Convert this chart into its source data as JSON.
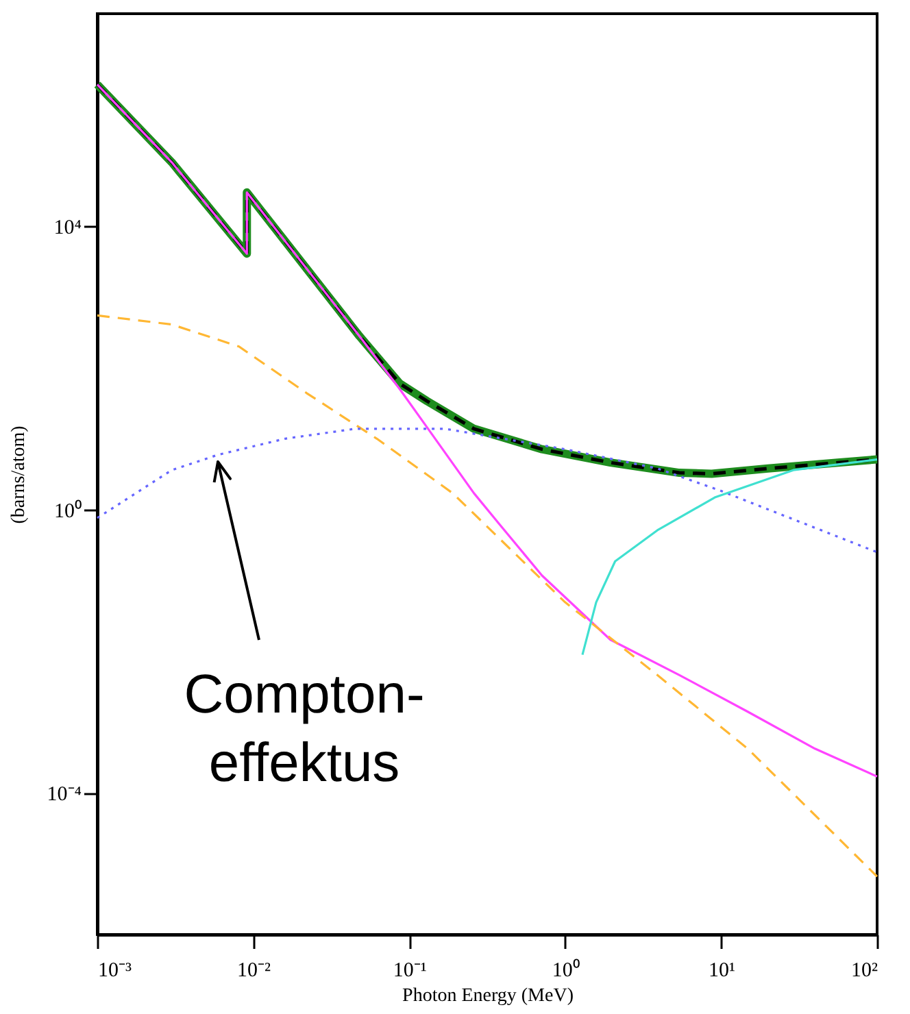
{
  "chart_data": {
    "type": "line",
    "xlabel": "Photon Energy (MeV)",
    "ylabel": "(barns/atom)",
    "log": "xy",
    "grid": false,
    "marker": "none",
    "xlim": [
      0.001,
      100
    ],
    "ylim": [
      1e-06,
      10000000
    ],
    "xticks": [
      {
        "value": 0.001,
        "label": "10⁻³"
      },
      {
        "value": 0.01,
        "label": "10⁻²"
      },
      {
        "value": 0.1,
        "label": "10⁻¹"
      },
      {
        "value": 1,
        "label": "10⁰"
      },
      {
        "value": 10,
        "label": "10¹"
      },
      {
        "value": 100,
        "label": "10²"
      }
    ],
    "yticks": [
      {
        "value": 0.0001,
        "label": "10⁻⁴"
      },
      {
        "value": 1,
        "label": "10⁰"
      },
      {
        "value": 10000,
        "label": "10⁴"
      }
    ],
    "series": [
      {
        "color": "#1e8c1e",
        "line_style": "solid",
        "x": [
          0.001,
          0.003,
          0.0091,
          0.0091,
          0.048,
          0.087,
          0.13,
          0.26,
          0.71,
          1.95,
          5.4,
          8.7,
          20,
          56,
          100
        ],
        "values": [
          1000000,
          80000,
          4100,
          30000,
          280,
          60,
          34,
          13.8,
          7.1,
          4.6,
          3.3,
          3.2,
          3.8,
          4.6,
          5.1
        ]
      },
      {
        "color": "#000000",
        "line_style": "dashed",
        "x": [
          0.001,
          0.003,
          0.0091,
          0.0091,
          0.048,
          0.087,
          0.13,
          0.26,
          0.71,
          1.95,
          5.4,
          8.7,
          20,
          56,
          100
        ],
        "values": [
          1000000,
          80000,
          4100,
          30000,
          280,
          60,
          34,
          13.8,
          7.1,
          4.6,
          3.3,
          3.2,
          3.8,
          4.6,
          5.1
        ]
      },
      {
        "color": "#ff44ff",
        "line_style": "solid",
        "x": [
          0.001,
          0.003,
          0.0091,
          0.0091,
          0.048,
          0.087,
          0.13,
          0.26,
          0.36,
          0.71,
          1.95,
          5.4,
          14.8,
          40,
          100
        ],
        "values": [
          1000000,
          80000,
          4100,
          30000,
          280,
          50,
          14.5,
          1.7,
          0.71,
          0.117,
          0.0145,
          0.0046,
          0.0014,
          0.00042,
          0.00017
        ]
      },
      {
        "color": "#ffb733",
        "line_style": "dashed",
        "x": [
          0.001,
          0.003,
          0.0081,
          0.022,
          0.062,
          0.19,
          1.0,
          3.9,
          14.8,
          100
        ],
        "values": [
          550,
          410,
          200,
          44,
          10,
          1.7,
          0.049,
          0.0046,
          0.00042,
          6.6e-06
        ]
      },
      {
        "color": "#6666ff",
        "line_style": "dotted",
        "x": [
          0.001,
          0.003,
          0.0059,
          0.016,
          0.045,
          0.17,
          1.0,
          3.9,
          9.8,
          100
        ],
        "values": [
          0.76,
          3.6,
          5.9,
          10,
          13.8,
          13.8,
          7.1,
          3.8,
          1.86,
          0.25
        ]
      },
      {
        "color": "#40e0d0",
        "line_style": "solid",
        "x": [
          1.29,
          1.58,
          2.09,
          3.9,
          9.1,
          29,
          100
        ],
        "values": [
          0.0089,
          0.049,
          0.186,
          0.51,
          1.48,
          3.6,
          5.1
        ]
      }
    ],
    "annotations": [
      "Compton-\neffektus"
    ]
  }
}
